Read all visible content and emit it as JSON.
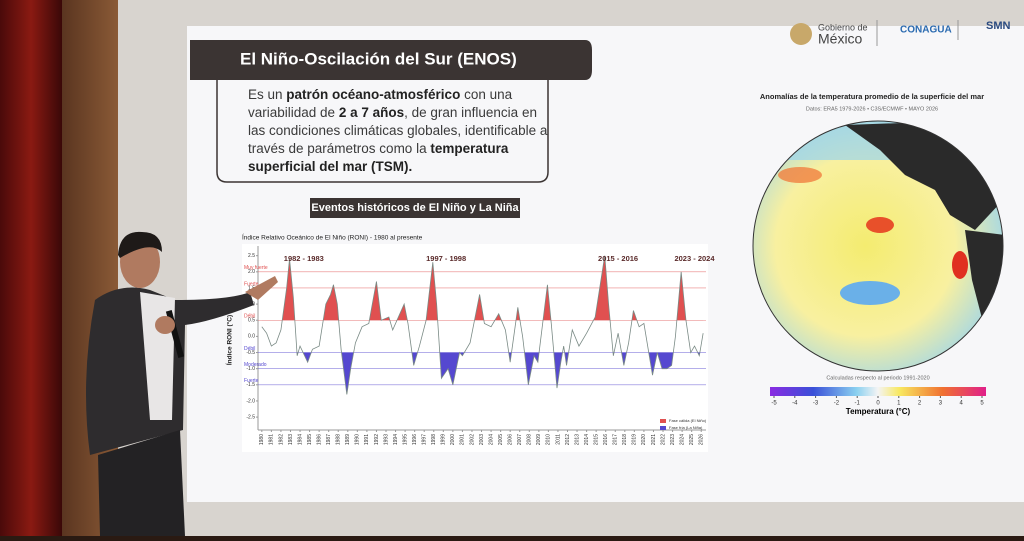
{
  "slide": {
    "logo_gobierno": "Gobierno de",
    "logo_mexico": "México",
    "logo_conagua": "CONAGUA",
    "logo_smn": "SMN",
    "title": "El Niño-Oscilación del Sur (ENOS)",
    "paragraph": [
      {
        "text": "Es un ",
        "bold": false
      },
      {
        "text": "patrón océano-atmosférico",
        "bold": true
      },
      {
        "text": " con una variabilidad de ",
        "bold": false
      },
      {
        "text": "2 a 7 años",
        "bold": true
      },
      {
        "text": ", de gran influencia en las condiciones climáticas globales, identificable a través de parámetros como la ",
        "bold": false
      },
      {
        "text": "temperatura superficial del mar (TSM).",
        "bold": true
      }
    ],
    "section_title": "Eventos históricos de El Niño y La Niña"
  },
  "chart_data": {
    "type": "line",
    "title": "Índice Relativo Oceánico de El Niño (RONI) - 1980 al presente",
    "y_label": "Índice RONI (°C)",
    "x": [
      1980,
      1980.5,
      1981,
      1981.5,
      1982,
      1982.6,
      1982.9,
      1983.3,
      1983.7,
      1984,
      1984.8,
      1985.3,
      1986,
      1986.7,
      1987.2,
      1987.5,
      1987.9,
      1988.3,
      1988.9,
      1989.3,
      1989.8,
      1990.5,
      1991.2,
      1992,
      1992.5,
      1993.3,
      1993.7,
      1994.9,
      1995.3,
      1995.9,
      1996.5,
      1997.2,
      1997.9,
      1998.3,
      1998.8,
      1999.5,
      2000,
      2000.7,
      2001,
      2001.8,
      2002.8,
      2003.3,
      2004,
      2004.8,
      2005.5,
      2006,
      2006.8,
      2007.3,
      2007.9,
      2008.5,
      2008.9,
      2009.9,
      2010.3,
      2010.9,
      2011.3,
      2011.6,
      2011.9,
      2012.5,
      2013.2,
      2014,
      2014.9,
      2015.9,
      2016.3,
      2016.8,
      2017.3,
      2017.9,
      2018.4,
      2018.9,
      2019.5,
      2020,
      2020.9,
      2021.4,
      2021.9,
      2022.4,
      2022.9,
      2023.3,
      2023.9,
      2024.4,
      2024.9,
      2025.3,
      2025.8,
      2026.2
    ],
    "values": [
      0.3,
      0.1,
      -0.3,
      -0.2,
      0.2,
      1.5,
      2.4,
      1.2,
      -0.6,
      -0.3,
      -0.8,
      -0.4,
      -0.3,
      1.0,
      1.3,
      1.6,
      1.0,
      -0.4,
      -1.8,
      -1.0,
      -0.2,
      0.3,
      0.4,
      1.7,
      0.5,
      0.6,
      0.2,
      1.0,
      0.4,
      -0.9,
      -0.3,
      0.5,
      2.3,
      1.0,
      -1.3,
      -1.0,
      -1.5,
      -0.5,
      -0.6,
      -0.2,
      1.3,
      0.4,
      0.3,
      0.7,
      0.2,
      -0.8,
      0.9,
      0.0,
      -1.5,
      -0.6,
      -0.8,
      1.6,
      0.4,
      -1.6,
      -0.8,
      -0.3,
      -0.9,
      0.2,
      -0.3,
      0.1,
      0.6,
      2.5,
      1.0,
      -0.6,
      0.1,
      -0.9,
      -0.2,
      0.8,
      0.3,
      0.4,
      -1.2,
      -0.5,
      -1.0,
      -1.0,
      -0.9,
      0.0,
      2.0,
      0.5,
      -0.5,
      -0.3,
      -0.6,
      0.1
    ],
    "line_color": "#7a8a85",
    "warm_color": "#e05050",
    "cold_color": "#5548d0",
    "warm_threshold": 0.5,
    "cold_threshold": -0.5,
    "xlim": [
      1979.6,
      2026.5
    ],
    "ylim": [
      -2.9,
      2.8
    ],
    "xticks": [
      1980,
      1981,
      1982,
      1983,
      1984,
      1985,
      1986,
      1987,
      1988,
      1989,
      1990,
      1991,
      1992,
      1993,
      1994,
      1995,
      1996,
      1997,
      1998,
      1999,
      2000,
      2001,
      2002,
      2003,
      2004,
      2005,
      2006,
      2007,
      2008,
      2009,
      2010,
      2011,
      2012,
      2013,
      2014,
      2015,
      2016,
      2017,
      2018,
      2019,
      2020,
      2021,
      2022,
      2023,
      2024,
      2025,
      2026
    ],
    "yticks": [
      2.5,
      {
        "value": 2,
        "label": "2.0"
      },
      1.5,
      {
        "value": 1,
        "label": "1.0"
      },
      0.5,
      {
        "value": 0,
        "label": "0.0"
      },
      -0.5,
      {
        "value": -1,
        "label": "-1.0"
      },
      -1.5,
      {
        "value": -2,
        "label": "-2.0"
      },
      -2.5
    ],
    "levels": [
      {
        "value": 2,
        "label": "Muy fuerte"
      },
      {
        "value": 1.5,
        "label": "Fuerte"
      },
      {
        "value": 0.5,
        "label": "Débil"
      },
      {
        "value": -0.5,
        "label": "Débil"
      },
      {
        "value": -1,
        "label": "Moderado"
      },
      {
        "value": -1.5,
        "label": "Fuerte"
      }
    ],
    "annotations": [
      {
        "x": 1982.3,
        "label": "1982 - 1983"
      },
      {
        "x": 1997.2,
        "label": "1997 - 1998"
      },
      {
        "x": 2015.2,
        "label": "2015 - 2016"
      },
      {
        "x": 2023.2,
        "label": "2023 - 2024"
      }
    ],
    "legend": [
      "Fase cálida (El Niño)",
      "Fase fría (La Niña)"
    ]
  },
  "map": {
    "title": "Anomalías de la temperatura promedio de la superficie del mar",
    "source": "Datos: ERA5 1979-2026 • C3S/ECMWF • MAYO 2026",
    "note": "Calculadas respecto al periodo 1991-2020",
    "colorbar": {
      "lim": [
        -5,
        5
      ],
      "ticks": [
        -5,
        -4,
        -3,
        -2,
        -1,
        0,
        1,
        2,
        3,
        4,
        5
      ],
      "label": "Temperatura (°C)"
    }
  }
}
